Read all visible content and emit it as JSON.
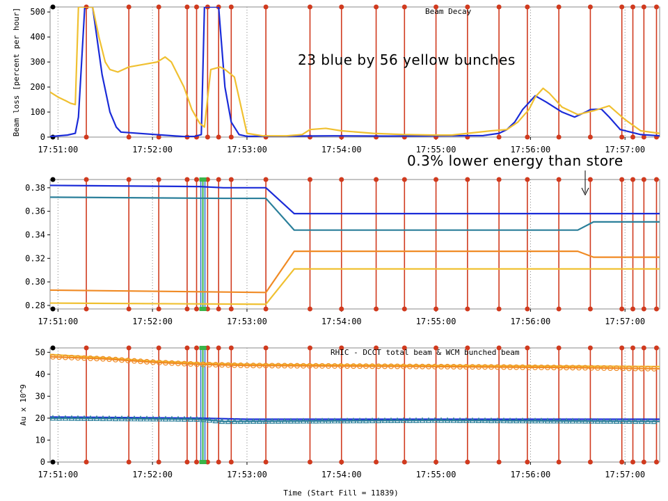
{
  "annotations": {
    "bunches": "23 blue by 56 yellow bunches",
    "energy": "0.3% lower energy than store"
  },
  "colors": {
    "blue": "#1a2bd8",
    "yellow": "#f0c030",
    "orange": "#f08a24",
    "teal": "#2a7f9a",
    "lightblue": "#2a6fd0",
    "marker": "#d03a1e",
    "green": "#39b54a",
    "grid": "#808080",
    "frame": "#8a8a8a"
  },
  "x_tick_labels": [
    "17:51:00",
    "17:52:00",
    "17:53:00",
    "17:54:00",
    "17:55:00",
    "17:56:00",
    "17:57:00"
  ],
  "chart_data": [
    {
      "type": "line",
      "title": "Beam Decay",
      "xlabel": "",
      "ylabel": "Beam loss [percent per hour]",
      "xlim": [
        "17:50:55",
        "17:57:22"
      ],
      "ylim": [
        0,
        520
      ],
      "y_ticks": [
        0,
        100,
        200,
        300,
        400,
        500
      ],
      "x_ticks": [
        "17:51:00",
        "17:52:00",
        "17:53:00",
        "17:54:00",
        "17:55:00",
        "17:56:00",
        "17:57:00"
      ],
      "grid": "vertical dotted",
      "series": [
        {
          "color": "blue",
          "x": [
            "17:50:55",
            "17:51:06",
            "17:51:11",
            "17:51:13",
            "17:51:17",
            "17:51:22",
            "17:51:28",
            "17:51:33",
            "17:51:37",
            "17:51:40",
            "17:52:20",
            "17:52:27",
            "17:52:31",
            "17:52:33",
            "17:52:36",
            "17:52:42",
            "17:52:46",
            "17:52:50",
            "17:52:55",
            "17:53:00",
            "17:53:55",
            "17:54:30",
            "17:55:30",
            "17:55:40",
            "17:55:45",
            "17:55:50",
            "17:55:55",
            "17:56:03",
            "17:56:10",
            "17:56:20",
            "17:56:28",
            "17:56:35",
            "17:56:38",
            "17:56:45",
            "17:56:50",
            "17:56:57",
            "17:57:10",
            "17:57:22"
          ],
          "values": [
            2,
            8,
            15,
            80,
            520,
            520,
            250,
            100,
            40,
            20,
            2,
            3,
            10,
            520,
            520,
            520,
            200,
            60,
            10,
            3,
            5,
            4,
            6,
            15,
            30,
            60,
            110,
            165,
            140,
            100,
            80,
            100,
            110,
            112,
            80,
            30,
            10,
            5
          ]
        },
        {
          "color": "yellow",
          "x": [
            "17:50:55",
            "17:51:00",
            "17:51:05",
            "17:51:08",
            "17:51:11",
            "17:51:13",
            "17:51:22",
            "17:51:26",
            "17:51:30",
            "17:51:33",
            "17:51:38",
            "17:51:45",
            "17:51:54",
            "17:52:03",
            "17:52:08",
            "17:52:12",
            "17:52:20",
            "17:52:25",
            "17:52:30",
            "17:52:33",
            "17:52:37",
            "17:52:43",
            "17:52:46",
            "17:52:52",
            "17:53:00",
            "17:53:10",
            "17:53:25",
            "17:53:35",
            "17:53:40",
            "17:53:50",
            "17:54:00",
            "17:54:20",
            "17:54:40",
            "17:55:00",
            "17:55:10",
            "17:55:20",
            "17:55:35",
            "17:55:45",
            "17:55:52",
            "17:55:59",
            "17:56:03",
            "17:56:08",
            "17:56:12",
            "17:56:20",
            "17:56:30",
            "17:56:40",
            "17:56:50",
            "17:57:00",
            "17:57:10",
            "17:57:22"
          ],
          "values": [
            180,
            160,
            145,
            135,
            130,
            520,
            520,
            400,
            300,
            270,
            260,
            280,
            290,
            300,
            320,
            300,
            200,
            110,
            55,
            40,
            270,
            280,
            270,
            240,
            15,
            5,
            5,
            10,
            30,
            35,
            25,
            15,
            10,
            8,
            8,
            15,
            25,
            30,
            60,
            110,
            160,
            195,
            175,
            120,
            90,
            105,
            125,
            70,
            25,
            15
          ]
        }
      ]
    },
    {
      "type": "line",
      "title": "",
      "xlabel": "",
      "ylabel": "",
      "xlim": [
        "17:50:55",
        "17:57:22"
      ],
      "ylim": [
        0.277,
        0.387
      ],
      "y_ticks": [
        0.28,
        0.3,
        0.32,
        0.34,
        0.36,
        0.38
      ],
      "x_ticks": [
        "17:51:00",
        "17:52:00",
        "17:53:00",
        "17:54:00",
        "17:55:00",
        "17:56:00",
        "17:57:00"
      ],
      "grid": "vertical dotted",
      "series": [
        {
          "color": "blue",
          "x": [
            "17:50:55",
            "17:52:30",
            "17:52:45",
            "17:53:12",
            "17:53:30",
            "17:57:22"
          ],
          "values": [
            0.382,
            0.381,
            0.38,
            0.38,
            0.358,
            0.358
          ]
        },
        {
          "color": "teal",
          "x": [
            "17:50:55",
            "17:52:45",
            "17:53:12",
            "17:53:30",
            "17:56:30",
            "17:56:40",
            "17:57:22"
          ],
          "values": [
            0.372,
            0.371,
            0.371,
            0.344,
            0.344,
            0.351,
            0.351
          ]
        },
        {
          "color": "orange",
          "x": [
            "17:50:55",
            "17:53:12",
            "17:53:30",
            "17:56:30",
            "17:56:40",
            "17:57:22"
          ],
          "values": [
            0.293,
            0.291,
            0.326,
            0.326,
            0.321,
            0.321
          ]
        },
        {
          "color": "yellow",
          "x": [
            "17:50:55",
            "17:53:12",
            "17:53:30",
            "17:57:22"
          ],
          "values": [
            0.282,
            0.281,
            0.311,
            0.311
          ]
        }
      ]
    },
    {
      "type": "line",
      "title": "RHIC - DCCT total beam & WCM bunched beam",
      "xlabel": "Time (Start Fill = 11839)",
      "ylabel": "Au x 10^9",
      "xlim": [
        "17:50:55",
        "17:57:22"
      ],
      "ylim": [
        0,
        52
      ],
      "y_ticks": [
        0,
        10,
        20,
        30,
        40,
        50
      ],
      "x_ticks": [
        "17:51:00",
        "17:52:00",
        "17:53:00",
        "17:54:00",
        "17:55:00",
        "17:56:00",
        "17:57:00"
      ],
      "grid": "vertical dotted",
      "series": [
        {
          "color": "yellow",
          "marker": "none",
          "x": [
            "17:50:55",
            "17:51:30",
            "17:52:00",
            "17:52:35",
            "17:53:00",
            "17:55:00",
            "17:57:22"
          ],
          "values": [
            49,
            47.5,
            46,
            45,
            44.5,
            44,
            43.5
          ]
        },
        {
          "color": "orange",
          "marker": "circle",
          "x": [
            "17:50:55",
            "17:51:30",
            "17:52:00",
            "17:52:30",
            "17:53:00",
            "17:55:00",
            "17:56:30",
            "17:57:22"
          ],
          "values": [
            48,
            47,
            45.5,
            44.5,
            44,
            43.5,
            43,
            42.5
          ]
        },
        {
          "color": "blue",
          "marker": "none",
          "x": [
            "17:50:55",
            "17:52:30",
            "17:53:00",
            "17:57:22"
          ],
          "values": [
            20.5,
            20,
            19.5,
            19.5
          ]
        },
        {
          "color": "teal",
          "marker": "triangle",
          "x": [
            "17:50:55",
            "17:52:30",
            "17:52:45",
            "17:55:00",
            "17:57:22"
          ],
          "values": [
            20,
            19.5,
            18.5,
            19,
            18.5
          ]
        }
      ]
    }
  ],
  "markers": {
    "red_lines": [
      "17:51:18",
      "17:51:45",
      "17:52:04",
      "17:52:22",
      "17:52:28",
      "17:52:35",
      "17:52:42",
      "17:52:50",
      "17:53:12",
      "17:53:40",
      "17:54:00",
      "17:54:22",
      "17:54:40",
      "17:55:00",
      "17:55:20",
      "17:55:40",
      "17:55:58",
      "17:56:18",
      "17:56:38",
      "17:56:58",
      "17:57:05",
      "17:57:12",
      "17:57:20"
    ],
    "green_line": "17:52:32"
  }
}
